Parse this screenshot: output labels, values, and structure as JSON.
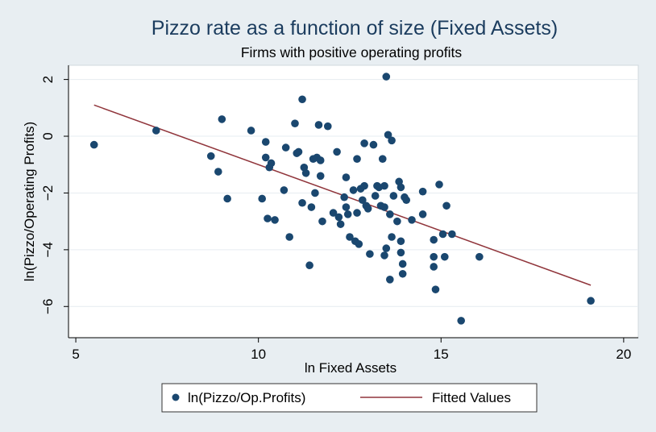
{
  "chart_data": {
    "type": "scatter",
    "title": "Pizzo rate as a function of size (Fixed Assets)",
    "subtitle": "Firms with positive operating profits",
    "xlabel": "ln Fixed Assets",
    "ylabel": "ln(Pizzo/Operating Profits)",
    "xlim": [
      4.8,
      20.4
    ],
    "ylim": [
      -7.1,
      2.5
    ],
    "xticks": [
      5,
      10,
      15,
      20
    ],
    "yticks": [
      2,
      0,
      -2,
      -4,
      -6
    ],
    "grid": true,
    "legend_position": "bottom",
    "series": [
      {
        "name": "ln(Pizzo/Op.Profits)",
        "kind": "scatter",
        "color": "#1a476f",
        "points": [
          [
            5.5,
            -0.3
          ],
          [
            7.2,
            0.2
          ],
          [
            8.7,
            -0.7
          ],
          [
            8.9,
            -1.25
          ],
          [
            9.0,
            0.6
          ],
          [
            9.15,
            -2.2
          ],
          [
            9.8,
            0.2
          ],
          [
            10.1,
            -2.2
          ],
          [
            10.2,
            -0.75
          ],
          [
            10.2,
            -0.2
          ],
          [
            10.25,
            -2.9
          ],
          [
            10.3,
            -1.1
          ],
          [
            10.35,
            -0.95
          ],
          [
            10.45,
            -2.95
          ],
          [
            10.7,
            -1.9
          ],
          [
            10.75,
            -0.4
          ],
          [
            10.85,
            -3.55
          ],
          [
            11.0,
            0.45
          ],
          [
            11.05,
            -0.6
          ],
          [
            11.1,
            -0.55
          ],
          [
            11.2,
            1.3
          ],
          [
            11.2,
            -2.35
          ],
          [
            11.25,
            -1.1
          ],
          [
            11.3,
            -1.3
          ],
          [
            11.4,
            -4.55
          ],
          [
            11.45,
            -2.5
          ],
          [
            11.5,
            -0.8
          ],
          [
            11.55,
            -2.0
          ],
          [
            11.6,
            -0.75
          ],
          [
            11.65,
            0.4
          ],
          [
            11.7,
            -0.85
          ],
          [
            11.7,
            -1.4
          ],
          [
            11.75,
            -3.0
          ],
          [
            11.9,
            0.35
          ],
          [
            12.05,
            -2.7
          ],
          [
            12.15,
            -0.55
          ],
          [
            12.2,
            -2.85
          ],
          [
            12.25,
            -3.1
          ],
          [
            12.35,
            -2.15
          ],
          [
            12.4,
            -1.45
          ],
          [
            12.4,
            -2.5
          ],
          [
            12.45,
            -2.75
          ],
          [
            12.5,
            -3.55
          ],
          [
            12.6,
            -1.9
          ],
          [
            12.65,
            -3.7
          ],
          [
            12.7,
            -0.8
          ],
          [
            12.7,
            -2.7
          ],
          [
            12.75,
            -3.8
          ],
          [
            12.8,
            -1.85
          ],
          [
            12.85,
            -2.25
          ],
          [
            12.9,
            -0.25
          ],
          [
            12.9,
            -1.75
          ],
          [
            12.95,
            -2.45
          ],
          [
            13.0,
            -2.55
          ],
          [
            13.05,
            -4.15
          ],
          [
            13.15,
            -0.3
          ],
          [
            13.2,
            -2.1
          ],
          [
            13.25,
            -1.75
          ],
          [
            13.3,
            -1.8
          ],
          [
            13.35,
            -2.45
          ],
          [
            13.4,
            -0.8
          ],
          [
            13.45,
            -1.75
          ],
          [
            13.45,
            -2.5
          ],
          [
            13.45,
            -4.2
          ],
          [
            13.5,
            -3.95
          ],
          [
            13.5,
            2.1
          ],
          [
            13.55,
            0.05
          ],
          [
            13.6,
            -5.05
          ],
          [
            13.6,
            -2.75
          ],
          [
            13.65,
            -0.15
          ],
          [
            13.65,
            -3.55
          ],
          [
            13.7,
            -2.1
          ],
          [
            13.8,
            -3.0
          ],
          [
            13.85,
            -1.6
          ],
          [
            13.9,
            -3.7
          ],
          [
            13.9,
            -1.8
          ],
          [
            13.9,
            -4.1
          ],
          [
            13.95,
            -4.5
          ],
          [
            13.95,
            -4.85
          ],
          [
            14.0,
            -2.15
          ],
          [
            14.05,
            -2.25
          ],
          [
            14.2,
            -2.95
          ],
          [
            14.5,
            -1.95
          ],
          [
            14.5,
            -2.75
          ],
          [
            14.8,
            -3.65
          ],
          [
            14.8,
            -4.25
          ],
          [
            14.8,
            -4.6
          ],
          [
            14.85,
            -5.4
          ],
          [
            14.95,
            -1.7
          ],
          [
            15.05,
            -3.45
          ],
          [
            15.1,
            -4.25
          ],
          [
            15.15,
            -2.45
          ],
          [
            15.3,
            -3.45
          ],
          [
            15.55,
            -6.5
          ],
          [
            16.05,
            -4.25
          ],
          [
            19.1,
            -5.8
          ]
        ]
      },
      {
        "name": "Fitted Values",
        "kind": "line",
        "color": "#90353b",
        "points": [
          [
            5.5,
            1.1
          ],
          [
            19.1,
            -5.25
          ]
        ]
      }
    ]
  }
}
